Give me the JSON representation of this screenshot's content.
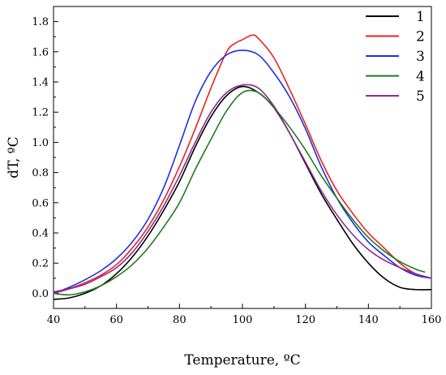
{
  "chart_data": {
    "type": "line",
    "title": "",
    "xlabel": "Temperature, ºC",
    "ylabel": "dT, ºC",
    "xlim": [
      40,
      160
    ],
    "ylim": [
      -0.1,
      1.9
    ],
    "x_ticks": [
      "40",
      "60",
      "80",
      "100",
      "120",
      "140",
      "160"
    ],
    "y_ticks": [
      "0.0",
      "0.2",
      "0.4",
      "0.6",
      "0.8",
      "1.0",
      "1.2",
      "1.4",
      "1.6",
      "1.8"
    ],
    "grid": false,
    "legend_position": "top-right",
    "series": [
      {
        "name": "1",
        "color": "#000000",
        "x": [
          40,
          45,
          50,
          55,
          60,
          65,
          70,
          75,
          80,
          85,
          90,
          95,
          100,
          105,
          110,
          115,
          120,
          125,
          130,
          135,
          140,
          145,
          150,
          155,
          160
        ],
        "y": [
          -0.04,
          -0.03,
          0.0,
          0.05,
          0.13,
          0.24,
          0.38,
          0.55,
          0.74,
          0.97,
          1.17,
          1.31,
          1.37,
          1.33,
          1.23,
          1.06,
          0.86,
          0.66,
          0.49,
          0.33,
          0.2,
          0.1,
          0.04,
          0.025,
          0.025
        ]
      },
      {
        "name": "2",
        "color": "#e8241d",
        "x": [
          40,
          45,
          50,
          55,
          60,
          65,
          70,
          75,
          80,
          85,
          90,
          95,
          98,
          100,
          103,
          105,
          110,
          115,
          120,
          125,
          130,
          135,
          140,
          145,
          150,
          155,
          160
        ],
        "y": [
          0.0,
          0.03,
          0.07,
          0.12,
          0.19,
          0.3,
          0.44,
          0.62,
          0.84,
          1.09,
          1.36,
          1.6,
          1.66,
          1.68,
          1.71,
          1.69,
          1.56,
          1.35,
          1.12,
          0.88,
          0.68,
          0.53,
          0.4,
          0.3,
          0.2,
          0.13,
          0.1
        ]
      },
      {
        "name": "3",
        "color": "#1c2fe6",
        "x": [
          40,
          45,
          50,
          55,
          60,
          65,
          70,
          75,
          80,
          85,
          90,
          95,
          100,
          105,
          110,
          115,
          120,
          125,
          130,
          135,
          140,
          145,
          150,
          155,
          160
        ],
        "y": [
          0.0,
          0.04,
          0.09,
          0.15,
          0.23,
          0.34,
          0.49,
          0.7,
          0.98,
          1.27,
          1.47,
          1.58,
          1.61,
          1.58,
          1.46,
          1.3,
          1.09,
          0.84,
          0.63,
          0.47,
          0.34,
          0.25,
          0.17,
          0.12,
          0.1
        ]
      },
      {
        "name": "4",
        "color": "#1f7a1f",
        "x": [
          40,
          45,
          50,
          55,
          60,
          65,
          70,
          75,
          80,
          85,
          90,
          95,
          100,
          105,
          110,
          115,
          120,
          125,
          130,
          135,
          140,
          145,
          150,
          155,
          158
        ],
        "y": [
          0.0,
          -0.01,
          0.01,
          0.05,
          0.11,
          0.19,
          0.3,
          0.44,
          0.6,
          0.82,
          1.02,
          1.21,
          1.33,
          1.33,
          1.23,
          1.1,
          0.95,
          0.78,
          0.63,
          0.49,
          0.37,
          0.28,
          0.21,
          0.16,
          0.14
        ]
      },
      {
        "name": "5",
        "color": "#8b2c8f",
        "x": [
          40,
          45,
          50,
          55,
          60,
          65,
          70,
          75,
          80,
          85,
          90,
          95,
          100,
          105,
          110,
          115,
          120,
          125,
          130,
          135,
          140,
          145,
          150,
          155,
          160
        ],
        "y": [
          0.01,
          0.03,
          0.06,
          0.11,
          0.17,
          0.27,
          0.41,
          0.58,
          0.78,
          1.0,
          1.2,
          1.33,
          1.38,
          1.36,
          1.24,
          1.06,
          0.87,
          0.68,
          0.52,
          0.39,
          0.29,
          0.22,
          0.17,
          0.13,
          0.1
        ]
      }
    ]
  }
}
